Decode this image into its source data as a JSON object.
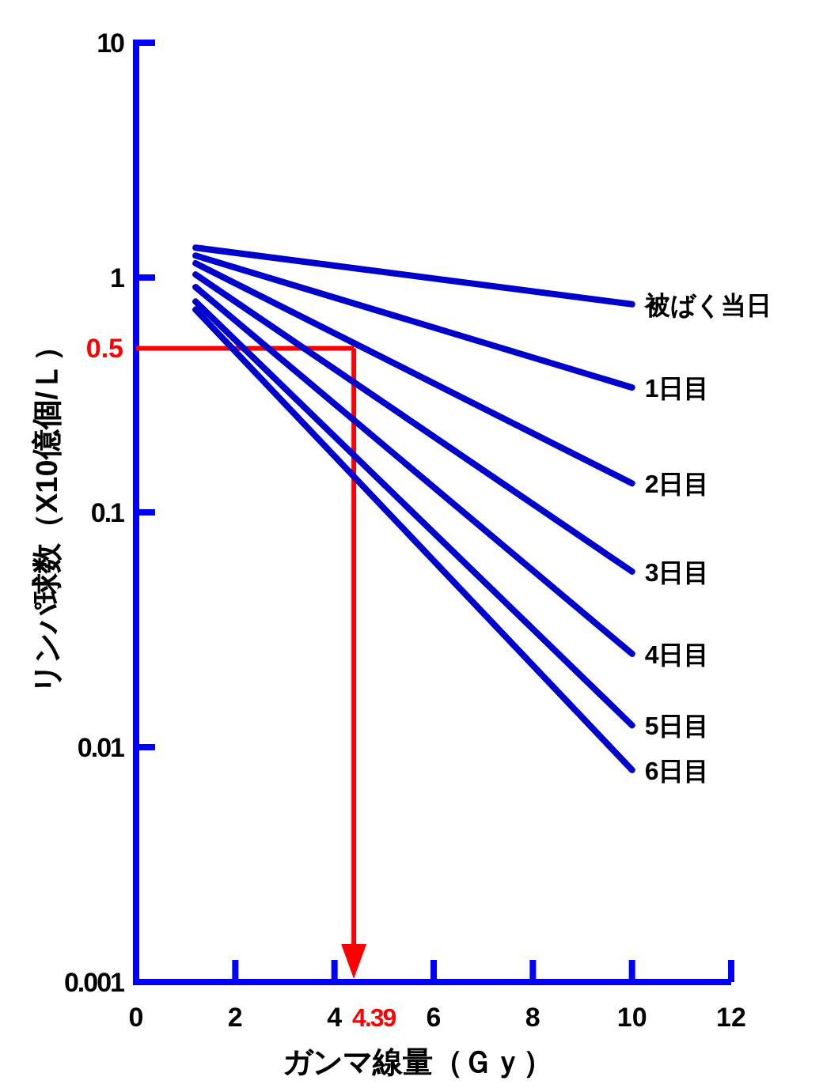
{
  "chart_data": {
    "type": "line",
    "xlabel": "ガンマ線量（Ｇｙ）",
    "ylabel": "リンパ球数（X10億個/Ｌ）",
    "log": "y",
    "xlim": [
      0,
      12
    ],
    "xticks": [
      0,
      2,
      4,
      6,
      8,
      10,
      12
    ],
    "ylim": [
      0.001,
      10
    ],
    "yticks": [
      0.001,
      0.01,
      0.1,
      1,
      10
    ],
    "legend": false,
    "grid": false,
    "line_style": "solid",
    "x": [
      1.2,
      10
    ],
    "series": [
      {
        "name": "被ばく当日",
        "color": "#0000cc",
        "values": [
          1.34,
          0.77
        ]
      },
      {
        "name": "1日目",
        "color": "#0000cc",
        "values": [
          1.24,
          0.34
        ]
      },
      {
        "name": "2日目",
        "color": "#0000cc",
        "values": [
          1.15,
          0.133
        ]
      },
      {
        "name": "3日目",
        "color": "#0000cc",
        "values": [
          1.03,
          0.056
        ]
      },
      {
        "name": "4日目",
        "color": "#0000cc",
        "values": [
          0.91,
          0.025
        ]
      },
      {
        "name": "5日目",
        "color": "#0000cc",
        "values": [
          0.79,
          0.0124
        ]
      },
      {
        "name": "6日目",
        "color": "#0000cc",
        "values": [
          0.73,
          0.008
        ]
      }
    ],
    "ref_lines": [
      {
        "axis": "y",
        "value": 0.5,
        "label": "0.5",
        "color": "#ff0000"
      },
      {
        "axis": "x",
        "value": 4.39,
        "label": "4.39",
        "color": "#ff0000"
      }
    ]
  }
}
